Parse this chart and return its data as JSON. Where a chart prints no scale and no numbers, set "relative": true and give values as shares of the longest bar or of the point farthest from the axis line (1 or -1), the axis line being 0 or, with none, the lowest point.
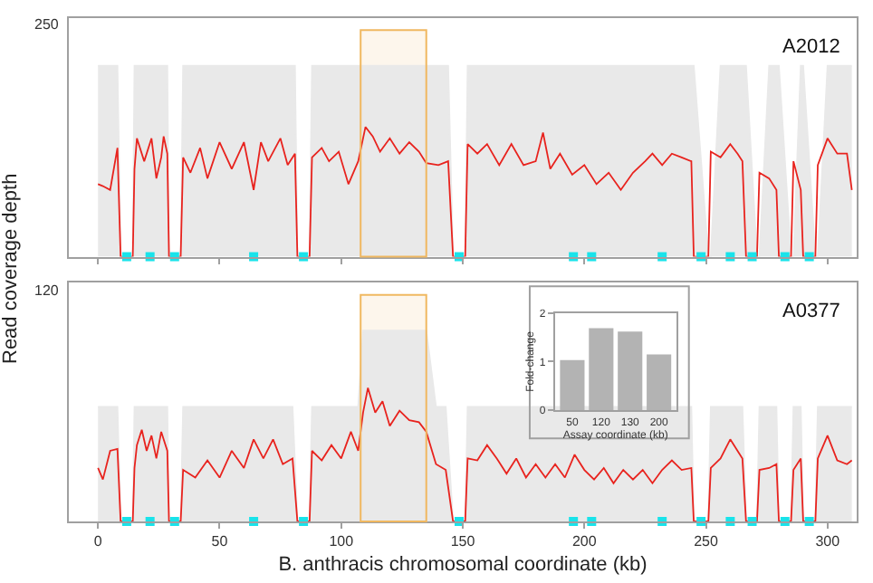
{
  "chart_data": [
    {
      "type": "area",
      "title": "A2012",
      "ylabel": "Read coverage depth",
      "relative": true,
      "annotations": [
        "250"
      ],
      "xlim": [
        -12,
        312
      ],
      "xticks": [
        0,
        50,
        100,
        150,
        200,
        250,
        300
      ],
      "tick_labels": false,
      "x": [
        0,
        2,
        5,
        8,
        9.3,
        14.3,
        15,
        16,
        19,
        22,
        24,
        26,
        27,
        28.5,
        29.2,
        34,
        35,
        38,
        42,
        45,
        50,
        55,
        60,
        64,
        67,
        70,
        75,
        78,
        81,
        82,
        87,
        88,
        92,
        95,
        99,
        103,
        107,
        110,
        113,
        116,
        120,
        124,
        128,
        132,
        135,
        140,
        144,
        146,
        151,
        152,
        156,
        160,
        165,
        170,
        175,
        180,
        183,
        186,
        190,
        195,
        200,
        205,
        210,
        215,
        220,
        225,
        228,
        232,
        236,
        240,
        244,
        245,
        251,
        252,
        256,
        260,
        263,
        265,
        266.5,
        271,
        272,
        276,
        279,
        280,
        285,
        286,
        289,
        290,
        295,
        296,
        300,
        304,
        308,
        310
      ],
      "series": [
        {
          "type": "area",
          "color": "#e9e9e9",
          "values": [
            1,
            1,
            1,
            1,
            0,
            0,
            1,
            1,
            1,
            1,
            1,
            1,
            1,
            1,
            0,
            0,
            1,
            1,
            1,
            1,
            1,
            1,
            1,
            1,
            1,
            1,
            1,
            1,
            1,
            0,
            0,
            1,
            1,
            1,
            1,
            1,
            1,
            1,
            1,
            1,
            1,
            1,
            1,
            1,
            1,
            1,
            1,
            0,
            0,
            1,
            1,
            1,
            1,
            1,
            1,
            1,
            1,
            1,
            1,
            1,
            1,
            1,
            1,
            1,
            1,
            1,
            1,
            1,
            1,
            1,
            1,
            1,
            0,
            0,
            1,
            1,
            1,
            1,
            1,
            0,
            0,
            1,
            1,
            1,
            0,
            0,
            1,
            1,
            0,
            0,
            1,
            1,
            1,
            1
          ]
        },
        {
          "type": "line",
          "color": "#e8231e",
          "values": [
            0.38,
            0.37,
            0.35,
            0.57,
            0,
            0,
            0.46,
            0.62,
            0.5,
            0.62,
            0.41,
            0.52,
            0.63,
            0.54,
            0,
            0,
            0.52,
            0.44,
            0.57,
            0.41,
            0.6,
            0.46,
            0.6,
            0.35,
            0.6,
            0.5,
            0.62,
            0.48,
            0.54,
            0,
            0,
            0.52,
            0.57,
            0.5,
            0.55,
            0.38,
            0.5,
            0.68,
            0.63,
            0.55,
            0.62,
            0.54,
            0.6,
            0.55,
            0.49,
            0.48,
            0.5,
            0,
            0,
            0.59,
            0.54,
            0.59,
            0.48,
            0.59,
            0.48,
            0.5,
            0.65,
            0.46,
            0.54,
            0.43,
            0.48,
            0.38,
            0.44,
            0.35,
            0.44,
            0.5,
            0.54,
            0.48,
            0.54,
            0.52,
            0.5,
            0,
            0,
            0.55,
            0.52,
            0.59,
            0.54,
            0.5,
            0,
            0,
            0.44,
            0.41,
            0.35,
            0,
            0,
            0.5,
            0.35,
            0,
            0,
            0.48,
            0.62,
            0.54,
            0.54,
            0.35
          ]
        },
        {
          "type": "scatter",
          "marker": "square",
          "color": "#19e3ea",
          "x": [
            11.8,
            21.4,
            31.5,
            64,
            84.5,
            148.5,
            195.5,
            203,
            232,
            248,
            260,
            269,
            282.5,
            292.5
          ],
          "values": [
            0,
            0,
            0,
            0,
            0,
            0,
            0,
            0,
            0,
            0,
            0,
            0,
            0,
            0
          ]
        }
      ],
      "bands": [
        {
          "axis": "x",
          "from": 108,
          "to": 135,
          "color": "#f0b860"
        }
      ]
    },
    {
      "type": "area",
      "title": "A0377",
      "xlabel": "B. anthracis chromosomal coordinate (kb)",
      "relative": true,
      "annotations": [
        "120"
      ],
      "xlim": [
        -12,
        312
      ],
      "xticks": [
        0,
        50,
        100,
        150,
        200,
        250,
        300
      ],
      "tick_labels": "x",
      "x": [
        0,
        2,
        5,
        8,
        9.3,
        14.3,
        15,
        16,
        18,
        20,
        22,
        24,
        26,
        28.5,
        29.2,
        34,
        35,
        40,
        45,
        50,
        55,
        60,
        64,
        68,
        72,
        76,
        80,
        82,
        87,
        88,
        92,
        96,
        100,
        104,
        107,
        109,
        111,
        114,
        117,
        120,
        124,
        128,
        132,
        135,
        139,
        143,
        146,
        151,
        152,
        156,
        160,
        164,
        168,
        172,
        176,
        180,
        184,
        188,
        192,
        196,
        200,
        204,
        208,
        212,
        216,
        220,
        224,
        228,
        232,
        236,
        240,
        244,
        245,
        251,
        252,
        256,
        260,
        263,
        265,
        266.5,
        271,
        272,
        276,
        279,
        280,
        285,
        286,
        289,
        290,
        295,
        296,
        300,
        304,
        308,
        310
      ],
      "series": [
        {
          "type": "area",
          "color": "#e9e9e9",
          "values": [
            0.6,
            0.6,
            0.6,
            0.6,
            0,
            0,
            0.6,
            0.6,
            0.6,
            0.6,
            0.6,
            0.6,
            0.6,
            0.6,
            0,
            0,
            0.6,
            0.6,
            0.6,
            0.6,
            0.6,
            0.6,
            0.6,
            0.6,
            0.6,
            0.6,
            0.6,
            0,
            0,
            0.6,
            0.6,
            0.6,
            0.6,
            0.6,
            0.6,
            1,
            1,
            1,
            1,
            1,
            1,
            1,
            1,
            1,
            0.6,
            0.6,
            0,
            0,
            0.6,
            0.6,
            0.6,
            0.6,
            0.6,
            0.6,
            0.6,
            0.6,
            0.6,
            0.6,
            0.6,
            0.6,
            0.6,
            0.6,
            0.6,
            0.6,
            0.6,
            0.6,
            0.6,
            0.6,
            0.6,
            0.6,
            0.6,
            0.6,
            0,
            0,
            0.6,
            0.6,
            0.6,
            0.6,
            0.6,
            0,
            0,
            0.6,
            0.6,
            0.6,
            0,
            0,
            0.6,
            0.6,
            0,
            0,
            0.6,
            0.6,
            0.6,
            0.6,
            0.6
          ]
        },
        {
          "type": "line",
          "color": "#e8231e",
          "values": [
            0.28,
            0.22,
            0.37,
            0.38,
            0,
            0,
            0.28,
            0.4,
            0.48,
            0.37,
            0.45,
            0.33,
            0.47,
            0.37,
            0,
            0,
            0.27,
            0.23,
            0.32,
            0.23,
            0.37,
            0.28,
            0.43,
            0.33,
            0.43,
            0.3,
            0.33,
            0,
            0,
            0.37,
            0.32,
            0.4,
            0.33,
            0.47,
            0.37,
            0.57,
            0.7,
            0.57,
            0.63,
            0.5,
            0.58,
            0.53,
            0.52,
            0.47,
            0.3,
            0.27,
            0,
            0,
            0.33,
            0.32,
            0.4,
            0.33,
            0.25,
            0.33,
            0.23,
            0.3,
            0.23,
            0.3,
            0.23,
            0.35,
            0.27,
            0.22,
            0.28,
            0.2,
            0.27,
            0.22,
            0.27,
            0.2,
            0.27,
            0.32,
            0.27,
            0.28,
            0,
            0,
            0.28,
            0.33,
            0.43,
            0.37,
            0.33,
            0,
            0,
            0.27,
            0.28,
            0.3,
            0,
            0,
            0.27,
            0.33,
            0,
            0,
            0.33,
            0.45,
            0.32,
            0.3,
            0.32
          ]
        },
        {
          "type": "scatter",
          "marker": "square",
          "color": "#19e3ea",
          "x": [
            11.8,
            21.4,
            31.5,
            64,
            84.5,
            148.5,
            195.5,
            203,
            232,
            248,
            260,
            269,
            282.5,
            292.5
          ],
          "values": [
            0,
            0,
            0,
            0,
            0,
            0,
            0,
            0,
            0,
            0,
            0,
            0,
            0,
            0
          ]
        }
      ],
      "bands": [
        {
          "axis": "x",
          "from": 108,
          "to": 135,
          "color": "#f0b860"
        }
      ]
    },
    {
      "type": "bar",
      "xlabel": "Assay coordinate (kb)",
      "ylabel": "Fold-change",
      "categories": [
        "50",
        "120",
        "130",
        "200"
      ],
      "values": [
        1.03,
        1.69,
        1.62,
        1.15
      ],
      "color": "#b3b3b3",
      "ylim": [
        0,
        2
      ],
      "yticks": [
        0,
        1,
        2
      ]
    }
  ]
}
